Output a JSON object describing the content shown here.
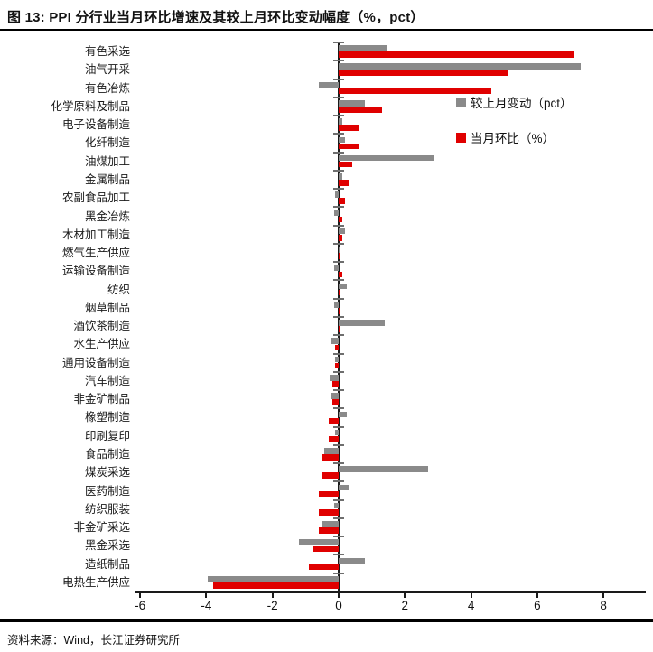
{
  "title": "图 13: PPI 分行业当月环比增速及其较上月环比变动幅度（%，pct）",
  "source": "资料来源：Wind，长江证券研究所",
  "colors": {
    "gray": "#8a8a8a",
    "red": "#e00000",
    "axis": "#1a1a1a",
    "tick": "#6e6e6e"
  },
  "chart_data": {
    "type": "bar",
    "orientation": "horizontal",
    "title": "PPI 分行业当月环比增速及其较上月环比变动幅度（%，pct）",
    "xlabel": "",
    "ylabel": "",
    "xlim": [
      -6,
      8
    ],
    "xticks": [
      -6,
      -4,
      -2,
      0,
      2,
      4,
      6,
      8
    ],
    "grid": false,
    "legend_position": "upper-right-inside",
    "categories": [
      "有色采选",
      "油气开采",
      "有色冶炼",
      "化学原料及制品",
      "电子设备制造",
      "化纤制造",
      "油煤加工",
      "金属制品",
      "农副食品加工",
      "黑金冶炼",
      "木材加工制造",
      "燃气生产供应",
      "运输设备制造",
      "纺织",
      "烟草制品",
      "酒饮茶制造",
      "水生产供应",
      "通用设备制造",
      "汽车制造",
      "非金矿制品",
      "橡塑制造",
      "印刷复印",
      "食品制造",
      "煤炭采选",
      "医药制造",
      "纺织服装",
      "非金矿采选",
      "黑金采选",
      "造纸制品",
      "电热生产供应"
    ],
    "series": [
      {
        "name": "较上月变动（pct）",
        "color_key": "gray",
        "values": [
          1.45,
          7.3,
          -0.6,
          0.8,
          0.1,
          0.2,
          2.9,
          0.1,
          -0.1,
          -0.15,
          0.2,
          0.05,
          -0.15,
          0.25,
          -0.15,
          1.4,
          -0.25,
          -0.12,
          -0.27,
          -0.25,
          0.25,
          -0.1,
          -0.45,
          2.7,
          0.3,
          -0.15,
          -0.5,
          -1.2,
          0.8,
          -3.95
        ]
      },
      {
        "name": "当月环比（%）",
        "color_key": "red",
        "values": [
          7.1,
          5.1,
          4.6,
          1.3,
          0.6,
          0.6,
          0.4,
          0.3,
          0.2,
          0.1,
          0.1,
          0.05,
          0.1,
          0.05,
          0.05,
          0.05,
          -0.1,
          -0.1,
          -0.2,
          -0.2,
          -0.3,
          -0.3,
          -0.5,
          -0.5,
          -0.6,
          -0.6,
          -0.6,
          -0.8,
          -0.9,
          -3.8
        ]
      }
    ]
  }
}
